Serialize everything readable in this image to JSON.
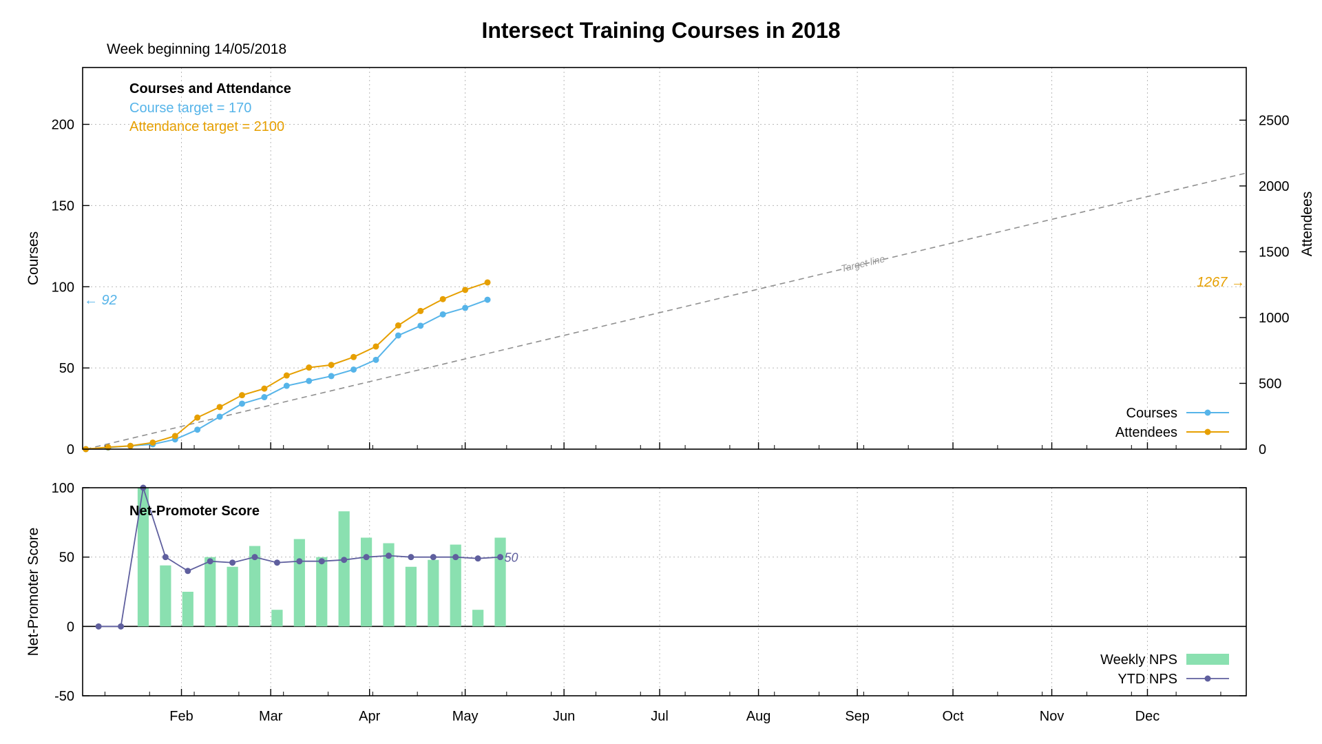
{
  "title": "Intersect Training Courses in 2018",
  "subtitle": "Week beginning 14/05/2018",
  "colors": {
    "courses": "#56b4e9",
    "attendees": "#e69f00",
    "weekly_nps": "#8ae0b0",
    "ytd_nps": "#5f5f9e",
    "target": "#8f8f8f"
  },
  "chart_data": [
    {
      "type": "line",
      "panel": "top",
      "heading": "Courses and Attendance",
      "notes": [
        "Course target = 170",
        "Attendance target = 2100"
      ],
      "ylabel_left": "Courses",
      "ylabel_right": "Attendees",
      "ylim_left": [
        0,
        235
      ],
      "ylim_right": [
        0,
        2900
      ],
      "yticks_left": [
        0,
        50,
        100,
        150,
        200
      ],
      "yticks_right": [
        0,
        500,
        1000,
        1500,
        2000,
        2500
      ],
      "xlim_days": [
        0,
        365
      ],
      "month_ticks": [
        {
          "label": "Feb",
          "day": 31
        },
        {
          "label": "Mar",
          "day": 59
        },
        {
          "label": "Apr",
          "day": 90
        },
        {
          "label": "May",
          "day": 120
        },
        {
          "label": "Jun",
          "day": 151
        },
        {
          "label": "Jul",
          "day": 181
        },
        {
          "label": "Aug",
          "day": 212
        },
        {
          "label": "Sep",
          "day": 243
        },
        {
          "label": "Oct",
          "day": 273
        },
        {
          "label": "Nov",
          "day": 304
        },
        {
          "label": "Dec",
          "day": 334
        }
      ],
      "target_line": {
        "label": "Target line",
        "x": [
          1,
          365
        ],
        "y": [
          0,
          170
        ]
      },
      "series": [
        {
          "name": "Courses",
          "axis": "left",
          "x": [
            1,
            8,
            15,
            22,
            29,
            36,
            43,
            50,
            57,
            64,
            71,
            78,
            85,
            92,
            99,
            106,
            113,
            120,
            127,
            134
          ],
          "y": [
            0,
            1,
            2,
            3,
            6,
            12,
            20,
            28,
            32,
            39,
            42,
            45,
            49,
            55,
            70,
            76,
            83,
            87,
            92,
            null
          ]
        },
        {
          "name": "Attendees",
          "axis": "right",
          "x": [
            1,
            8,
            15,
            22,
            29,
            36,
            43,
            50,
            57,
            64,
            71,
            78,
            85,
            92,
            99,
            106,
            113,
            120,
            127,
            134
          ],
          "y": [
            0,
            15,
            25,
            50,
            100,
            240,
            320,
            410,
            460,
            560,
            620,
            640,
            700,
            780,
            940,
            1050,
            1140,
            1210,
            1267,
            null
          ]
        }
      ],
      "annotations": [
        {
          "text": "← 92",
          "series": "Courses",
          "value": 92
        },
        {
          "text": "1267 →",
          "series": "Attendees",
          "value": 1267
        }
      ]
    },
    {
      "type": "bar",
      "panel": "bottom",
      "heading": "Net-Promoter Score",
      "ylabel": "Net-Promoter Score",
      "ylim": [
        -50,
        100
      ],
      "yticks": [
        -50,
        0,
        50,
        100
      ],
      "xlim_days": [
        0,
        365
      ],
      "series": [
        {
          "name": "Weekly NPS",
          "kind": "bar",
          "x": [
            19,
            26,
            33,
            40,
            47,
            54,
            61,
            68,
            75,
            82,
            89,
            96,
            103,
            110,
            117,
            124,
            131
          ],
          "values": [
            100,
            44,
            25,
            50,
            43,
            58,
            12,
            63,
            50,
            83,
            64,
            60,
            43,
            48,
            59,
            12,
            64
          ]
        },
        {
          "name": "YTD NPS",
          "kind": "line",
          "x": [
            5,
            12,
            19,
            26,
            33,
            40,
            47,
            54,
            61,
            68,
            75,
            82,
            89,
            96,
            103,
            110,
            117,
            124,
            131
          ],
          "values": [
            0,
            0,
            100,
            50,
            40,
            47,
            46,
            50,
            46,
            47,
            47,
            48,
            50,
            51,
            50,
            50,
            50,
            49,
            50
          ]
        }
      ],
      "annotations": [
        {
          "text": "50",
          "series": "YTD NPS",
          "value": 50
        }
      ]
    }
  ]
}
